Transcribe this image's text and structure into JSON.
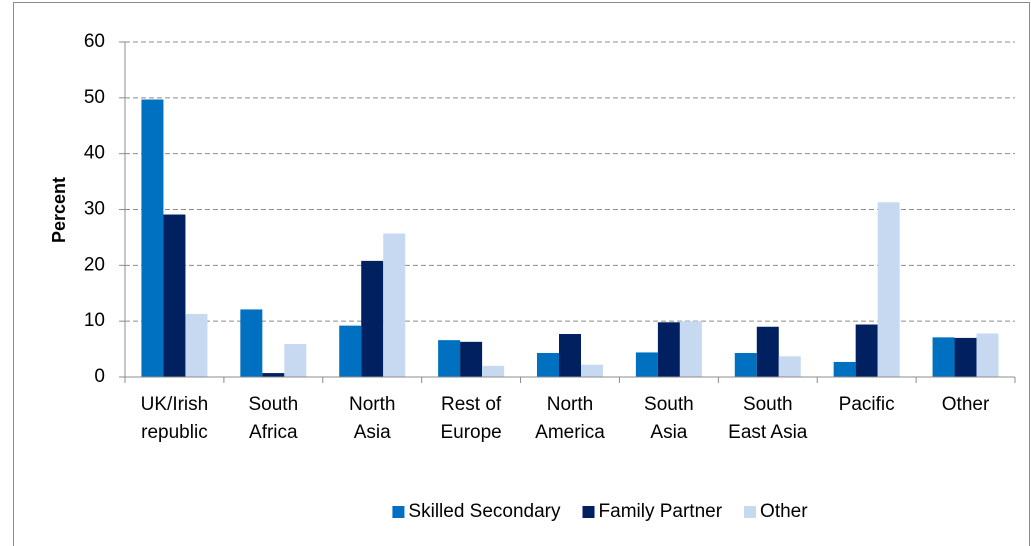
{
  "chart_data": {
    "type": "bar",
    "ylabel": "Percent",
    "categories": [
      "UK/Irish republic",
      "South Africa",
      "North Asia",
      "Rest of Europe",
      "North America",
      "South Asia",
      "South East Asia",
      "Pacific",
      "Other"
    ],
    "series": [
      {
        "name": "Skilled Secondary",
        "color": "#0070c0",
        "values": [
          49.7,
          12.1,
          9.2,
          6.6,
          4.3,
          4.4,
          4.3,
          2.7,
          7.1
        ]
      },
      {
        "name": "Family Partner",
        "color": "#002060",
        "values": [
          29.1,
          0.7,
          20.8,
          6.3,
          7.7,
          9.8,
          9.0,
          9.4,
          7.0
        ]
      },
      {
        "name": "Other",
        "color": "#c6d9f1",
        "values": [
          11.3,
          5.9,
          25.7,
          2.0,
          2.2,
          10.0,
          3.7,
          31.3,
          7.8
        ]
      }
    ],
    "ylim": [
      0,
      60
    ],
    "yticks": [
      0,
      10,
      20,
      30,
      40,
      50,
      60
    ],
    "grid": true,
    "legend": "bottom"
  }
}
